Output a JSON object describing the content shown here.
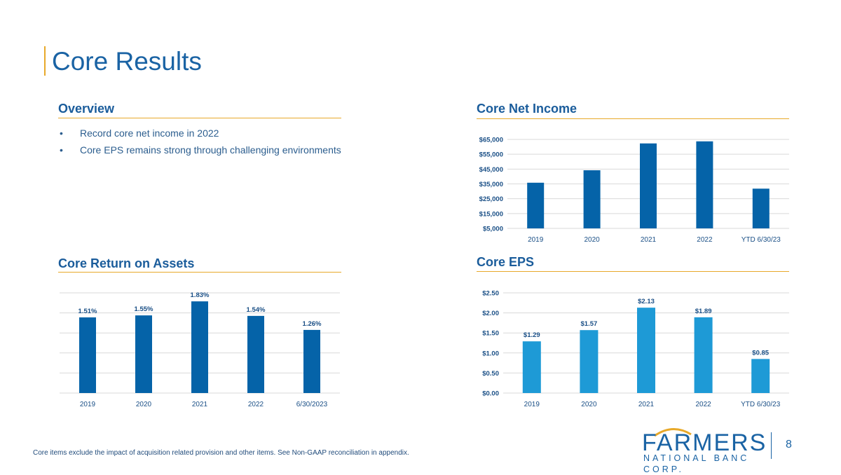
{
  "page_title": "Core Results",
  "overview": {
    "title": "Overview",
    "bullets": [
      "Record core net income in 2022",
      "Core EPS remains strong through challenging environments"
    ],
    "bullet_glyph": "•"
  },
  "footnote": "Core items exclude the impact of acquisition related provision and other items. See Non-GAAP reconciliation in appendix.",
  "logo": {
    "name": "FARMERS",
    "subtitle": "NATIONAL BANC CORP."
  },
  "page_number": "8",
  "colors": {
    "dark_blue": "#0563a8",
    "light_blue": "#1e9ad6",
    "gold": "#e8a92a",
    "text_blue": "#1a5c9b"
  },
  "chart_data": [
    {
      "id": "core-net-income",
      "type": "bar",
      "title": "Core Net Income",
      "categories": [
        "2019",
        "2020",
        "2021",
        "2022",
        "YTD 6/30/23"
      ],
      "values": [
        35800,
        44200,
        62300,
        63700,
        31800
      ],
      "ylim": [
        5000,
        65000
      ],
      "yticks": [
        5000,
        15000,
        25000,
        35000,
        45000,
        55000,
        65000
      ],
      "ytick_labels": [
        "$5,000",
        "$15,000",
        "$25,000",
        "$35,000",
        "$45,000",
        "$55,000",
        "$65,000"
      ],
      "data_labels": [],
      "color": "#0563a8",
      "grid": true
    },
    {
      "id": "core-roa",
      "type": "bar",
      "title": "Core Return on Assets",
      "categories": [
        "2019",
        "2020",
        "2021",
        "2022",
        "6/30/2023"
      ],
      "values": [
        1.51,
        1.55,
        1.83,
        1.54,
        1.26
      ],
      "ylim": [
        0,
        2.0
      ],
      "yticks": [
        0,
        0.4,
        0.8,
        1.2,
        1.6,
        2.0
      ],
      "ytick_labels": [],
      "data_labels": [
        "1.51%",
        "1.55%",
        "1.83%",
        "1.54%",
        "1.26%"
      ],
      "color": "#0563a8",
      "grid": true
    },
    {
      "id": "core-eps",
      "type": "bar",
      "title": "Core EPS",
      "categories": [
        "2019",
        "2020",
        "2021",
        "2022",
        "YTD 6/30/23"
      ],
      "values": [
        1.29,
        1.57,
        2.13,
        1.89,
        0.85
      ],
      "ylim": [
        0,
        2.5
      ],
      "yticks": [
        0,
        0.5,
        1.0,
        1.5,
        2.0,
        2.5
      ],
      "ytick_labels": [
        "$0.00",
        "$0.50",
        "$1.00",
        "$1.50",
        "$2.00",
        "$2.50"
      ],
      "data_labels": [
        "$1.29",
        "$1.57",
        "$2.13",
        "$1.89",
        "$0.85"
      ],
      "color": "#1e9ad6",
      "grid": true
    }
  ]
}
